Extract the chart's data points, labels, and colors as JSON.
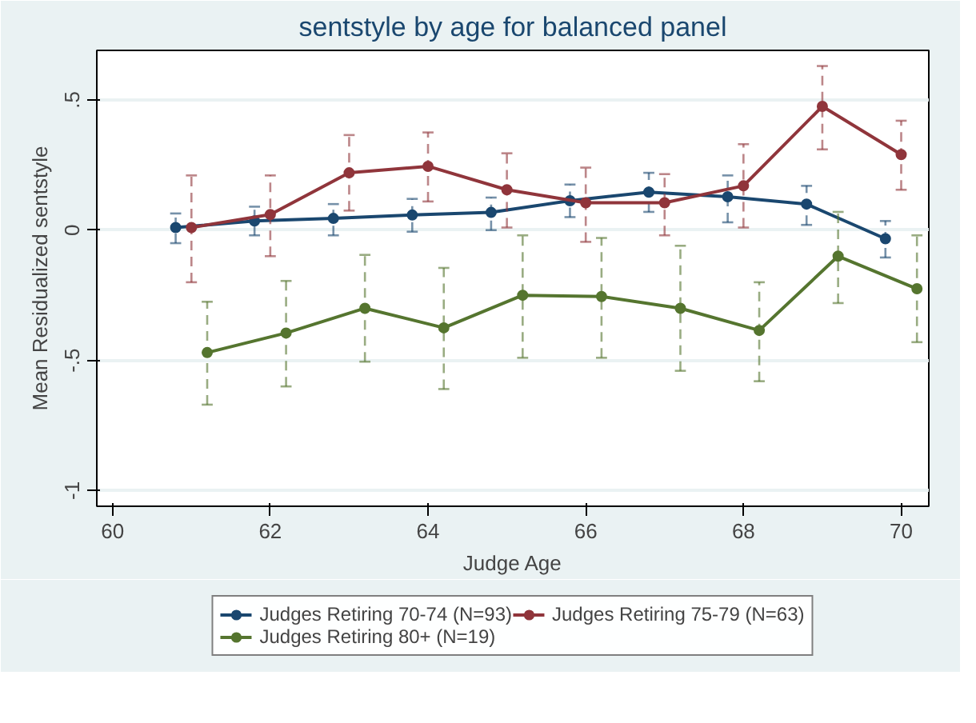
{
  "chart_data": {
    "type": "line",
    "title": "sentstyle by age for balanced panel",
    "xlabel": "Judge Age",
    "ylabel": "Mean Residualized sentstyle",
    "xlim": [
      59.8,
      70.35
    ],
    "ylim": [
      -1.06,
      0.69
    ],
    "xticks": [
      60,
      62,
      64,
      66,
      68,
      70
    ],
    "yticks": [
      {
        "value": 0.5,
        "label": ".5"
      },
      0,
      {
        "value": -0.5,
        "label": "-.5"
      },
      -1
    ],
    "grid": "y",
    "legend": "bottom",
    "marker": "circle",
    "line_style": "solid",
    "series": [
      {
        "name": "Judges Retiring 70-74 (N=93)",
        "color": "#1a476f",
        "x": [
          60.8,
          61.8,
          62.8,
          63.8,
          64.8,
          65.8,
          66.8,
          67.8,
          68.8,
          69.8
        ],
        "values": [
          0.01,
          0.035,
          0.045,
          0.058,
          0.068,
          0.113,
          0.146,
          0.128,
          0.1,
          -0.033
        ],
        "errors": [
          [
            -0.05,
            0.064
          ],
          [
            -0.02,
            0.09
          ],
          [
            -0.02,
            0.1
          ],
          [
            -0.006,
            0.12
          ],
          [
            0,
            0.125
          ],
          [
            0.05,
            0.175
          ],
          [
            0.07,
            0.22
          ],
          [
            0.03,
            0.21
          ],
          [
            0.02,
            0.17
          ],
          [
            -0.105,
            0.035
          ]
        ]
      },
      {
        "name": "Judges Retiring 75-79 (N=63)",
        "color": "#90353b",
        "x": [
          61,
          62,
          63,
          64,
          65,
          66,
          67,
          68,
          69,
          70
        ],
        "values": [
          0.01,
          0.06,
          0.22,
          0.245,
          0.155,
          0.105,
          0.105,
          0.17,
          0.475,
          0.29
        ],
        "errors": [
          [
            -0.2,
            0.21
          ],
          [
            -0.1,
            0.21
          ],
          [
            0.075,
            0.365
          ],
          [
            0.11,
            0.375
          ],
          [
            0.01,
            0.295
          ],
          [
            -0.045,
            0.24
          ],
          [
            -0.02,
            0.215
          ],
          [
            0.01,
            0.33
          ],
          [
            0.31,
            0.63
          ],
          [
            0.155,
            0.42
          ]
        ]
      },
      {
        "name": "Judges Retiring 80+ (N=19)",
        "color": "#55752f",
        "x": [
          61.2,
          62.2,
          63.2,
          64.2,
          65.2,
          66.2,
          67.2,
          68.2,
          69.2,
          70.2
        ],
        "values": [
          -0.47,
          -0.395,
          -0.3,
          -0.375,
          -0.25,
          -0.255,
          -0.3,
          -0.385,
          -0.1,
          -0.225
        ],
        "errors": [
          [
            -0.67,
            -0.275
          ],
          [
            -0.6,
            -0.195
          ],
          [
            -0.505,
            -0.095
          ],
          [
            -0.61,
            -0.145
          ],
          [
            -0.49,
            -0.02
          ],
          [
            -0.49,
            -0.03
          ],
          [
            -0.54,
            -0.06
          ],
          [
            -0.58,
            -0.2
          ],
          [
            -0.28,
            0.07
          ],
          [
            -0.43,
            -0.02
          ]
        ]
      }
    ]
  }
}
